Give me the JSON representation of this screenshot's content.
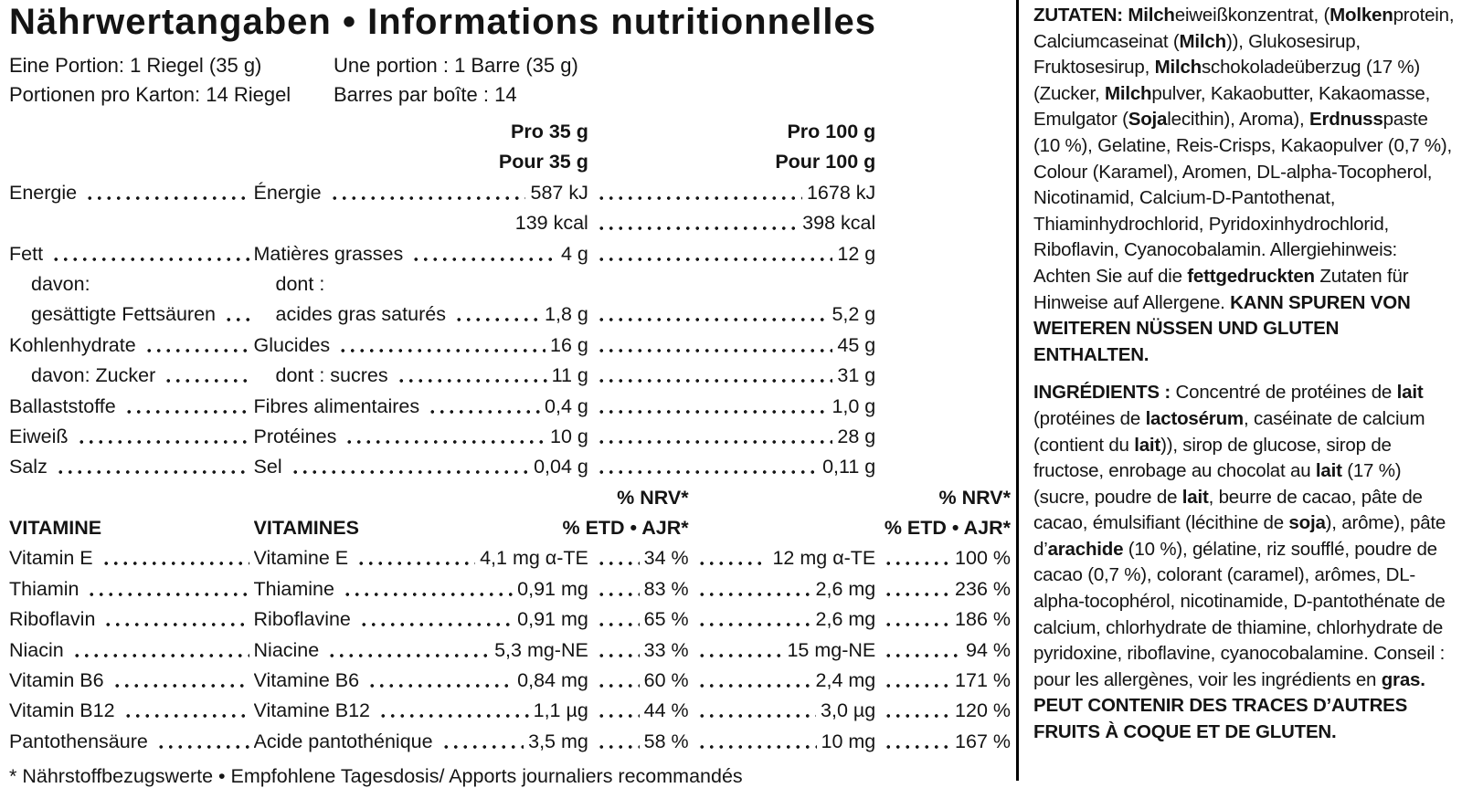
{
  "title": "Nährwertangaben • Informations nutritionnelles",
  "serving": {
    "de1": "Eine Portion: 1 Riegel (35 g)",
    "de2": "Portionen pro Karton: 14 Riegel",
    "fr1": "Une portion : 1 Barre (35 g)",
    "fr2": "Barres par boîte : 14"
  },
  "columns": {
    "per35_de": "Pro 35 g",
    "per35_fr": "Pour 35 g",
    "per100_de": "Pro 100 g",
    "per100_fr": "Pour 100 g",
    "nrv": "% NRV*",
    "etd": "% ETD • AJR*"
  },
  "sections": {
    "vitamins_de": "VITAMINE",
    "vitamins_fr": "VITAMINES"
  },
  "nutrients": [
    {
      "de": "Energie",
      "fr": "Énergie",
      "v35": "587 kJ",
      "v100": "1678 kJ"
    },
    {
      "de": "",
      "fr": "",
      "v35": "139 kcal",
      "v100": "398 kcal"
    },
    {
      "de": "Fett",
      "fr": "Matières grasses",
      "v35": "4 g",
      "v100": "12 g"
    },
    {
      "de": "davon:",
      "fr": "dont :",
      "v35": "",
      "v100": "",
      "indent": true,
      "nodots": true
    },
    {
      "de": "gesättigte Fettsäuren",
      "fr": "acides gras saturés",
      "v35": "1,8 g",
      "v100": "5,2 g",
      "indent": true
    },
    {
      "de": "Kohlenhydrate",
      "fr": "Glucides",
      "v35": "16 g",
      "v100": "45 g"
    },
    {
      "de": "davon: Zucker",
      "fr": "dont : sucres",
      "v35": "11 g",
      "v100": "31 g",
      "indent": true
    },
    {
      "de": "Ballaststoffe",
      "fr": "Fibres alimentaires",
      "v35": "0,4 g",
      "v100": "1,0 g"
    },
    {
      "de": "Eiweiß",
      "fr": "Protéines",
      "v35": "10 g",
      "v100": "28 g"
    },
    {
      "de": "Salz",
      "fr": "Sel",
      "v35": "0,04 g",
      "v100": "0,11 g"
    }
  ],
  "vitamins": [
    {
      "de": "Vitamin E",
      "fr": "Vitamine E",
      "v35": "4,1 mg α-TE",
      "p35": "34 %",
      "v100": "12 mg α-TE",
      "p100": "100 %"
    },
    {
      "de": "Thiamin",
      "fr": "Thiamine",
      "v35": "0,91 mg",
      "p35": "83 %",
      "v100": "2,6 mg",
      "p100": "236 %"
    },
    {
      "de": "Riboflavin",
      "fr": "Riboflavine",
      "v35": "0,91 mg",
      "p35": "65 %",
      "v100": "2,6 mg",
      "p100": "186 %"
    },
    {
      "de": "Niacin",
      "fr": "Niacine",
      "v35": "5,3 mg-NE",
      "p35": "33 %",
      "v100": "15 mg-NE",
      "p100": "94 %"
    },
    {
      "de": "Vitamin B6",
      "fr": "Vitamine B6",
      "v35": "0,84 mg",
      "p35": "60 %",
      "v100": "2,4 mg",
      "p100": "171 %"
    },
    {
      "de": "Vitamin B12",
      "fr": "Vitamine B12",
      "v35": "1,1 µg",
      "p35": "44 %",
      "v100": "3,0 µg",
      "p100": "120 %"
    },
    {
      "de": "Pantothensäure",
      "fr": "Acide pantothénique",
      "v35": "3,5 mg",
      "p35": "58 %",
      "v100": "10 mg",
      "p100": "167 %"
    }
  ],
  "footnote": "* Nährstoffbezugswerte • Empfohlene Tagesdosis/ Apports journaliers recommandés",
  "ingredients_de": {
    "segments": [
      {
        "t": "ZUTATEN: ",
        "b": true
      },
      {
        "t": "Milch",
        "b": true
      },
      {
        "t": "eiweißkonzentrat, ("
      },
      {
        "t": "Molken",
        "b": true
      },
      {
        "t": "protein, Calciumcaseinat ("
      },
      {
        "t": "Milch",
        "b": true
      },
      {
        "t": ")), Glukosesirup, Fruktosesirup, "
      },
      {
        "t": "Milch",
        "b": true
      },
      {
        "t": "schokoladeüberzug (17 %) (Zucker, "
      },
      {
        "t": "Milch",
        "b": true
      },
      {
        "t": "pulver, Kakaobutter, Kakaomasse, Emulgator ("
      },
      {
        "t": "Soja",
        "b": true
      },
      {
        "t": "lecithin), Aroma), "
      },
      {
        "t": "Erdnuss",
        "b": true
      },
      {
        "t": "paste (10 %), Gelatine, Reis-Crisps, Kakaopulver (0,7 %), Colour (Karamel), Aromen, DL-alpha-Tocopherol, Nicotinamid, Calcium-D-Pantothenat, Thiaminhydrochlorid, Pyridoxinhydrochlorid, Riboflavin, Cyanocobalamin. Allergiehinweis: Achten Sie auf die "
      },
      {
        "t": "fettgedruckten",
        "b": true
      },
      {
        "t": " Zutaten für Hinweise auf Allergene. "
      },
      {
        "t": "KANN SPUREN VON WEITEREN NÜSSEN UND GLUTEN ENTHALTEN.",
        "b": true
      }
    ]
  },
  "ingredients_fr": {
    "segments": [
      {
        "t": "INGRÉDIENTS : ",
        "b": true
      },
      {
        "t": "Concentré de protéines de "
      },
      {
        "t": "lait",
        "b": true
      },
      {
        "t": " (protéines de "
      },
      {
        "t": "lactosérum",
        "b": true
      },
      {
        "t": ", caséinate de calcium (contient du "
      },
      {
        "t": "lait",
        "b": true
      },
      {
        "t": ")), sirop de glucose, sirop de fructose, enrobage au chocolat au "
      },
      {
        "t": "lait",
        "b": true
      },
      {
        "t": " (17 %) (sucre, poudre de "
      },
      {
        "t": "lait",
        "b": true
      },
      {
        "t": ", beurre de cacao, pâte de cacao, émulsifiant (lécithine de "
      },
      {
        "t": "soja",
        "b": true
      },
      {
        "t": "), arôme), pâte d’"
      },
      {
        "t": "arachide",
        "b": true
      },
      {
        "t": " (10 %), gélatine, riz soufflé, poudre de cacao (0,7 %), colorant (caramel), arômes, DL-alpha-tocophérol, nicotinamide, D-pantothénate de calcium, chlorhydrate de thiamine, chlorhydrate de pyridoxine, riboflavine, cyanocobalamine. Conseil : pour les allergènes, voir les ingrédients en "
      },
      {
        "t": "gras. PEUT CONTENIR DES TRACES D’AUTRES FRUITS À COQUE ET DE GLUTEN.",
        "b": true
      }
    ]
  }
}
